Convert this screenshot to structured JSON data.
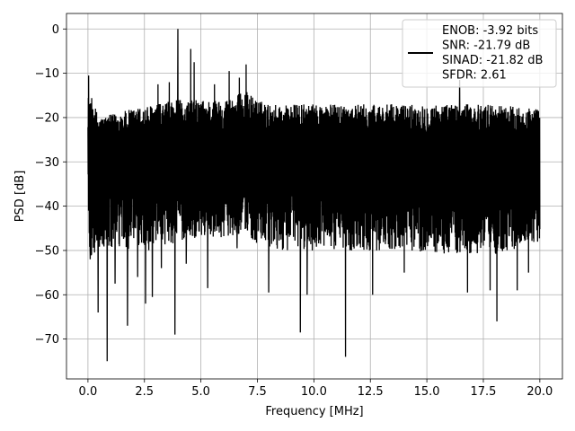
{
  "chart_data": {
    "type": "line",
    "title": "",
    "xlabel": "Frequency [MHz]",
    "ylabel": "PSD [dB]",
    "xlim": [
      -0.95,
      21.0
    ],
    "ylim": [
      -79,
      3.5
    ],
    "xticks": [
      0.0,
      2.5,
      5.0,
      7.5,
      10.0,
      12.5,
      15.0,
      17.5,
      20.0
    ],
    "xtick_labels": [
      "0.0",
      "2.5",
      "5.0",
      "7.5",
      "10.0",
      "12.5",
      "15.0",
      "17.5",
      "20.0"
    ],
    "yticks": [
      0,
      -10,
      -20,
      -30,
      -40,
      -50,
      -60,
      -70
    ],
    "ytick_labels": [
      "0",
      "−10",
      "−20",
      "−30",
      "−40",
      "−50",
      "−60",
      "−70"
    ],
    "grid": true,
    "legend_position": "top-right",
    "series": [
      {
        "color": "#000000",
        "legend_lines": [
          "ENOB: -3.92 bits",
          "SNR: -21.79 dB",
          "SINAD: -21.82 dB",
          "SFDR: 2.61"
        ],
        "noise_floor_mean_db": -30,
        "envelope": {
          "x": [
            0.0,
            0.05,
            0.5,
            2.0,
            3.0,
            4.0,
            5.0,
            6.0,
            7.0,
            7.5,
            8.0,
            10.0,
            12.0,
            14.0,
            16.0,
            18.0,
            20.0
          ],
          "upper": [
            -11,
            -14,
            -20,
            -18,
            -17,
            -16,
            -16,
            -16,
            -14,
            -16,
            -17,
            -17,
            -17,
            -17,
            -17,
            -17,
            -18
          ],
          "lower": [
            -36,
            -52,
            -50,
            -50,
            -50,
            -48,
            -47,
            -47,
            -46,
            -49,
            -50,
            -50,
            -50,
            -50,
            -51,
            -51,
            -48
          ]
        },
        "peaks": [
          {
            "x": 0.03,
            "y": -10.5
          },
          {
            "x": 3.98,
            "y": 0.0
          },
          {
            "x": 4.35,
            "y": -4.5
          },
          {
            "x": 4.55,
            "y": -4.5
          },
          {
            "x": 4.7,
            "y": -7.5
          },
          {
            "x": 6.25,
            "y": -9.5
          },
          {
            "x": 7.0,
            "y": -8.0
          },
          {
            "x": 3.1,
            "y": -12.5
          },
          {
            "x": 3.6,
            "y": -12.0
          },
          {
            "x": 5.6,
            "y": -12.5
          },
          {
            "x": 6.7,
            "y": -11.0
          },
          {
            "x": 16.45,
            "y": -11.5
          }
        ],
        "dips": [
          {
            "x": 0.1,
            "y": -52.0
          },
          {
            "x": 0.45,
            "y": -64.0
          },
          {
            "x": 0.85,
            "y": -75.0
          },
          {
            "x": 1.2,
            "y": -57.5
          },
          {
            "x": 1.75,
            "y": -67.0
          },
          {
            "x": 2.2,
            "y": -56.0
          },
          {
            "x": 2.55,
            "y": -62.0
          },
          {
            "x": 2.85,
            "y": -60.5
          },
          {
            "x": 3.25,
            "y": -54.0
          },
          {
            "x": 3.85,
            "y": -69.0
          },
          {
            "x": 4.35,
            "y": -53.0
          },
          {
            "x": 5.3,
            "y": -58.5
          },
          {
            "x": 6.6,
            "y": -49.5
          },
          {
            "x": 8.0,
            "y": -59.5
          },
          {
            "x": 9.4,
            "y": -68.5
          },
          {
            "x": 9.7,
            "y": -60.0
          },
          {
            "x": 11.4,
            "y": -74.0
          },
          {
            "x": 12.6,
            "y": -60.0
          },
          {
            "x": 14.0,
            "y": -55.0
          },
          {
            "x": 16.8,
            "y": -59.5
          },
          {
            "x": 17.8,
            "y": -59.0
          },
          {
            "x": 18.1,
            "y": -66.0
          },
          {
            "x": 19.0,
            "y": -59.0
          },
          {
            "x": 19.5,
            "y": -55.0
          }
        ]
      }
    ]
  }
}
